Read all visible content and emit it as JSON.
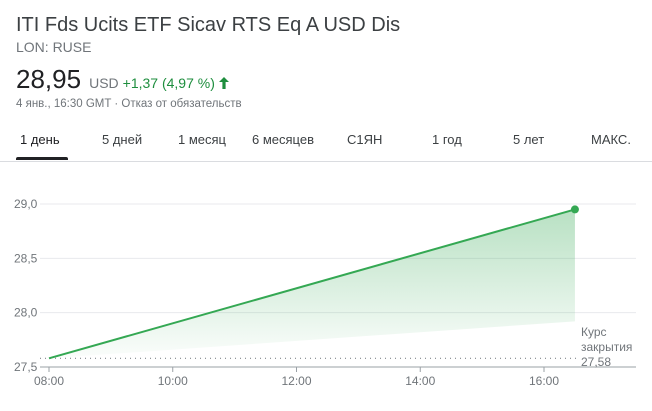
{
  "header": {
    "title": "ITI Fds Ucits ETF Sicav RTS Eq A USD Dis",
    "ticker": "LON: RUSE",
    "price": "28,95",
    "currency": "USD",
    "change": "+1,37 (4,97 %)",
    "meta": "4 янв., 16:30 GMT · Отказ от обязательств"
  },
  "tabs": [
    {
      "label": "1 день",
      "active": true
    },
    {
      "label": "5 дней"
    },
    {
      "label": "1 месяц"
    },
    {
      "label": "6 месяцев"
    },
    {
      "label": "С1ЯН"
    },
    {
      "label": "1 год"
    },
    {
      "label": "5 лет"
    },
    {
      "label": "МАКС."
    }
  ],
  "colors": {
    "line": "#34a853",
    "positive": "#1e8e3e"
  },
  "chart_data": {
    "type": "area",
    "x": [
      "08:00",
      "16:30"
    ],
    "y": [
      27.58,
      28.95
    ],
    "xticks": [
      "08:00",
      "10:00",
      "12:00",
      "14:00",
      "16:00"
    ],
    "yticks": [
      "27,5",
      "28,0",
      "28,5",
      "29,0"
    ],
    "ylim": [
      27.5,
      29.0
    ],
    "reference_line": {
      "value": 27.58,
      "label": [
        "Курс",
        "закрытия",
        "27,58"
      ]
    },
    "grid": true
  }
}
